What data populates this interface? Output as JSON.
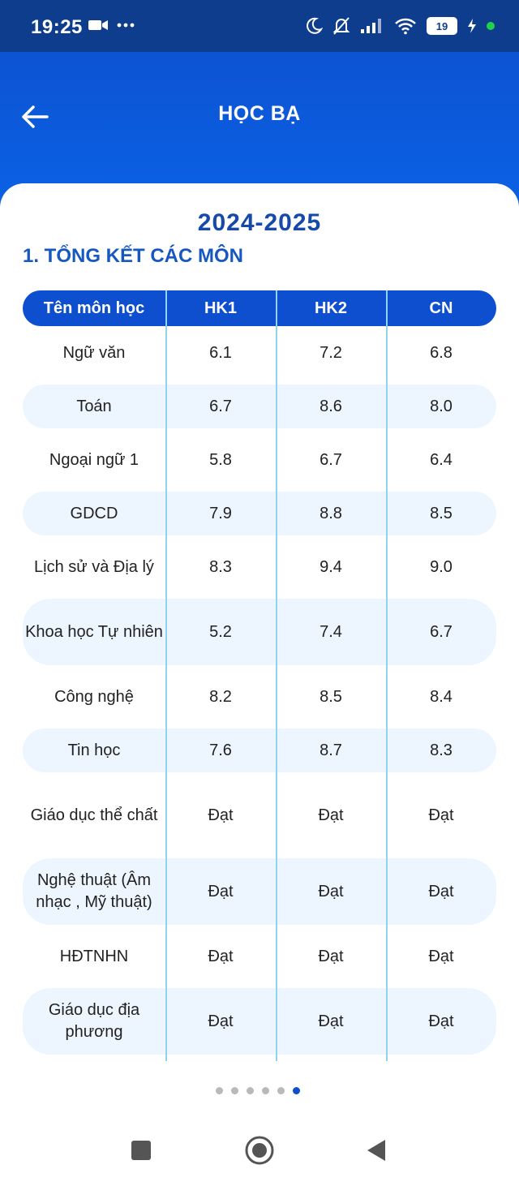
{
  "status": {
    "time": "19:25",
    "battery": "19"
  },
  "header": {
    "title": "HỌC BẠ"
  },
  "year": "2024-2025",
  "section_title": "1. TỔNG KẾT CÁC MÔN",
  "table": {
    "columns": [
      "Tên môn học",
      "HK1",
      "HK2",
      "CN"
    ],
    "rows": [
      {
        "name": "Ngữ văn",
        "hk1": "6.1",
        "hk2": "7.2",
        "cn": "6.8"
      },
      {
        "name": "Toán",
        "hk1": "6.7",
        "hk2": "8.6",
        "cn": "8.0"
      },
      {
        "name": "Ngoại ngữ 1",
        "hk1": "5.8",
        "hk2": "6.7",
        "cn": "6.4"
      },
      {
        "name": "GDCD",
        "hk1": "7.9",
        "hk2": "8.8",
        "cn": "8.5"
      },
      {
        "name": "Lịch sử và Địa lý",
        "hk1": "8.3",
        "hk2": "9.4",
        "cn": "9.0"
      },
      {
        "name": "Khoa học Tự nhiên",
        "hk1": "5.2",
        "hk2": "7.4",
        "cn": "6.7"
      },
      {
        "name": "Công nghệ",
        "hk1": "8.2",
        "hk2": "8.5",
        "cn": "8.4"
      },
      {
        "name": "Tin học",
        "hk1": "7.6",
        "hk2": "8.7",
        "cn": "8.3"
      },
      {
        "name": "Giáo dục thể chất",
        "hk1": "Đạt",
        "hk2": "Đạt",
        "cn": "Đạt"
      },
      {
        "name": "Nghệ thuật (Âm nhạc , Mỹ thuật)",
        "hk1": "Đạt",
        "hk2": "Đạt",
        "cn": "Đạt"
      },
      {
        "name": "HĐTNHN",
        "hk1": "Đạt",
        "hk2": "Đạt",
        "cn": "Đạt"
      },
      {
        "name": "Giáo dục địa phương",
        "hk1": "Đạt",
        "hk2": "Đạt",
        "cn": "Đạt"
      }
    ]
  },
  "pager": {
    "count": 6,
    "active": 6
  },
  "colors": {
    "primary": "#0d4fce",
    "status_bar": "#0e3d8e",
    "row_tint": "#edf6fe",
    "divider": "#8fd3ef"
  },
  "icons": [
    "back-arrow-icon",
    "video-camera-icon",
    "more-dots-icon",
    "moon-icon",
    "bell-off-icon",
    "signal-icon",
    "wifi-icon",
    "charging-icon",
    "recent-apps-icon",
    "home-icon",
    "back-triangle-icon"
  ]
}
